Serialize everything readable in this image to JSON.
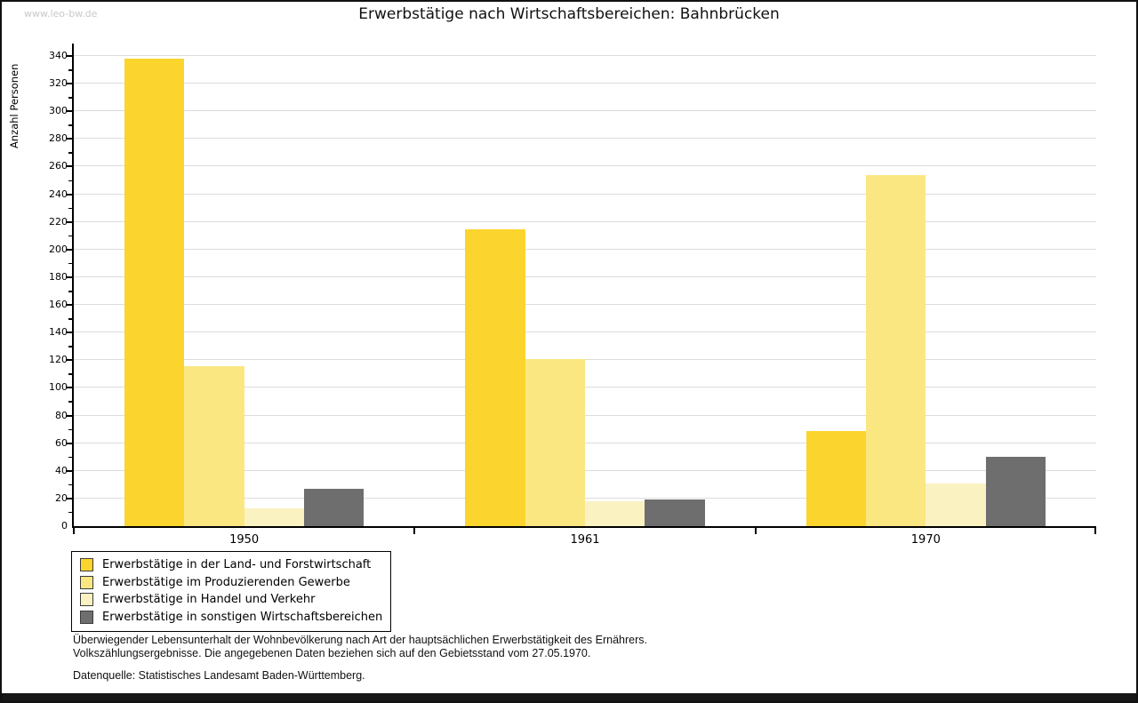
{
  "page": {
    "watermark": "www.leo-bw.de"
  },
  "chart_data": {
    "type": "bar",
    "title": "Erwerbstätige nach Wirtschaftsbereichen: Bahnbrücken",
    "xlabel": "",
    "ylabel": "Anzahl Personen",
    "categories": [
      "1950",
      "1961",
      "1970"
    ],
    "series": [
      {
        "name": "Erwerbstätige in der Land- und Forstwirtschaft",
        "color": "#fcd42e",
        "values": [
          338,
          215,
          69
        ]
      },
      {
        "name": "Erwerbstätige im Produzierenden Gewerbe",
        "color": "#fbe782",
        "values": [
          116,
          121,
          254
        ]
      },
      {
        "name": "Erwerbstätige in Handel und Verkehr",
        "color": "#fbf2c1",
        "values": [
          13,
          18,
          31
        ]
      },
      {
        "name": "Erwerbstätige in sonstigen Wirtschaftsbereichen",
        "color": "#6e6e6e",
        "values": [
          27,
          19,
          50
        ]
      }
    ],
    "ylim": [
      0,
      340
    ],
    "ytick_step": 20,
    "yminor_step": 10,
    "grid": true,
    "legend_position": "bottom-left",
    "colors": {
      "gridline": "#dcdcdc",
      "axis": "#000000",
      "watermark": "#c9c9c9"
    }
  },
  "footnotes": {
    "lines": [
      "Überwiegender Lebensunterhalt der Wohnbevölkerung nach Art der hauptsächlichen Erwerbstätigkeit des Ernährers.",
      "Volkszählungsergebnisse. Die angegebenen Daten beziehen sich auf den Gebietsstand vom 27.05.1970."
    ],
    "source": "Datenquelle: Statistisches Landesamt Baden-Württemberg."
  }
}
